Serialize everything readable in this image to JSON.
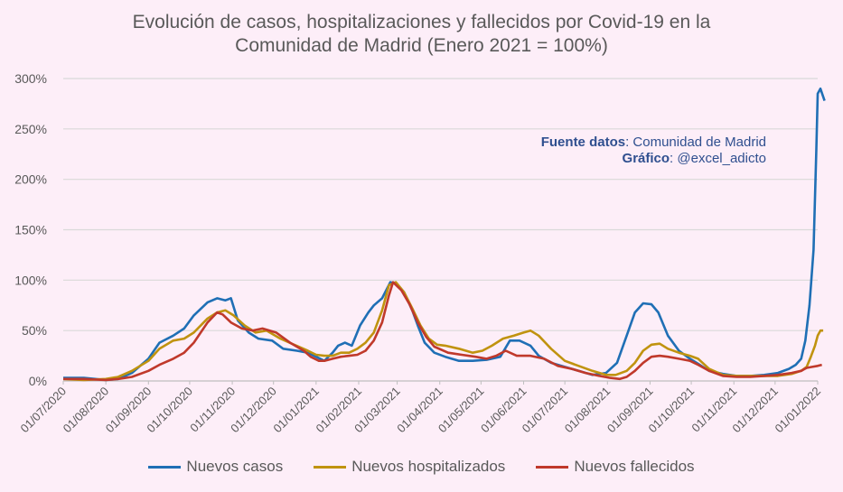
{
  "chart_data": {
    "type": "line",
    "title_lines": [
      "Evolución de casos, hospitalizaciones y fallecidos por Covid-19 en la",
      "Comunidad de Madrid (Enero 2021 = 100%)"
    ],
    "source": {
      "data_label": "Fuente datos",
      "data_value": ": Comunidad de Madrid",
      "chart_label": "Gráfico",
      "chart_value": ": @excel_adicto"
    },
    "y_ticks": [
      "0%",
      "50%",
      "100%",
      "150%",
      "200%",
      "250%",
      "300%"
    ],
    "ylim": [
      0,
      300
    ],
    "x_ticks": [
      "01/07/2020",
      "01/08/2020",
      "01/09/2020",
      "01/10/2020",
      "01/11/2020",
      "01/12/2020",
      "01/01/2021",
      "01/02/2021",
      "01/03/2021",
      "01/04/2021",
      "01/05/2021",
      "01/06/2021",
      "01/07/2021",
      "01/08/2021",
      "01/09/2021",
      "01/10/2021",
      "01/11/2021",
      "01/12/2021",
      "01/01/2022"
    ],
    "x_unit": "days since 01/07/2020",
    "xlim": [
      0,
      549
    ],
    "series": [
      {
        "name": "Nuevos casos",
        "color": "#1f6fb5",
        "points": [
          [
            0,
            3
          ],
          [
            15,
            3
          ],
          [
            31,
            1
          ],
          [
            40,
            2
          ],
          [
            50,
            8
          ],
          [
            62,
            22
          ],
          [
            70,
            38
          ],
          [
            80,
            45
          ],
          [
            88,
            52
          ],
          [
            95,
            65
          ],
          [
            105,
            78
          ],
          [
            112,
            82
          ],
          [
            118,
            80
          ],
          [
            122,
            82
          ],
          [
            127,
            60
          ],
          [
            135,
            48
          ],
          [
            142,
            42
          ],
          [
            152,
            40
          ],
          [
            160,
            32
          ],
          [
            170,
            30
          ],
          [
            178,
            28
          ],
          [
            184,
            24
          ],
          [
            190,
            20
          ],
          [
            196,
            28
          ],
          [
            200,
            35
          ],
          [
            205,
            38
          ],
          [
            210,
            35
          ],
          [
            216,
            55
          ],
          [
            222,
            68
          ],
          [
            226,
            75
          ],
          [
            232,
            82
          ],
          [
            238,
            98
          ],
          [
            243,
            96
          ],
          [
            248,
            88
          ],
          [
            254,
            70
          ],
          [
            258,
            55
          ],
          [
            263,
            38
          ],
          [
            270,
            28
          ],
          [
            278,
            24
          ],
          [
            288,
            20
          ],
          [
            298,
            20
          ],
          [
            308,
            21
          ],
          [
            318,
            24
          ],
          [
            325,
            40
          ],
          [
            332,
            40
          ],
          [
            340,
            35
          ],
          [
            346,
            25
          ],
          [
            355,
            18
          ],
          [
            365,
            14
          ],
          [
            375,
            10
          ],
          [
            385,
            6
          ],
          [
            395,
            8
          ],
          [
            403,
            18
          ],
          [
            410,
            45
          ],
          [
            416,
            68
          ],
          [
            422,
            77
          ],
          [
            428,
            76
          ],
          [
            433,
            68
          ],
          [
            440,
            45
          ],
          [
            448,
            30
          ],
          [
            456,
            22
          ],
          [
            462,
            17
          ],
          [
            470,
            10
          ],
          [
            480,
            7
          ],
          [
            490,
            5
          ],
          [
            500,
            5
          ],
          [
            510,
            6
          ],
          [
            520,
            8
          ],
          [
            528,
            12
          ],
          [
            533,
            16
          ],
          [
            537,
            22
          ],
          [
            540,
            40
          ],
          [
            543,
            75
          ],
          [
            546,
            130
          ],
          [
            548,
            230
          ],
          [
            549,
            285
          ],
          [
            551,
            290
          ],
          [
            554,
            278
          ]
        ]
      },
      {
        "name": "Nuevos hospitalizados",
        "color": "#c0930f",
        "points": [
          [
            0,
            2
          ],
          [
            15,
            1
          ],
          [
            31,
            2
          ],
          [
            40,
            4
          ],
          [
            50,
            10
          ],
          [
            62,
            20
          ],
          [
            70,
            32
          ],
          [
            80,
            40
          ],
          [
            88,
            42
          ],
          [
            95,
            48
          ],
          [
            105,
            62
          ],
          [
            112,
            68
          ],
          [
            118,
            70
          ],
          [
            124,
            65
          ],
          [
            132,
            55
          ],
          [
            140,
            48
          ],
          [
            148,
            50
          ],
          [
            158,
            42
          ],
          [
            168,
            36
          ],
          [
            178,
            30
          ],
          [
            184,
            26
          ],
          [
            190,
            25
          ],
          [
            196,
            25
          ],
          [
            202,
            28
          ],
          [
            208,
            28
          ],
          [
            214,
            32
          ],
          [
            220,
            38
          ],
          [
            226,
            48
          ],
          [
            232,
            70
          ],
          [
            237,
            95
          ],
          [
            242,
            98
          ],
          [
            248,
            88
          ],
          [
            254,
            72
          ],
          [
            260,
            55
          ],
          [
            266,
            42
          ],
          [
            272,
            36
          ],
          [
            278,
            35
          ],
          [
            288,
            32
          ],
          [
            298,
            28
          ],
          [
            305,
            30
          ],
          [
            312,
            35
          ],
          [
            320,
            42
          ],
          [
            328,
            45
          ],
          [
            335,
            48
          ],
          [
            340,
            50
          ],
          [
            346,
            45
          ],
          [
            355,
            32
          ],
          [
            365,
            20
          ],
          [
            375,
            15
          ],
          [
            385,
            10
          ],
          [
            395,
            6
          ],
          [
            402,
            6
          ],
          [
            410,
            10
          ],
          [
            416,
            18
          ],
          [
            422,
            30
          ],
          [
            428,
            36
          ],
          [
            434,
            37
          ],
          [
            440,
            32
          ],
          [
            448,
            28
          ],
          [
            456,
            25
          ],
          [
            462,
            22
          ],
          [
            470,
            12
          ],
          [
            480,
            6
          ],
          [
            490,
            5
          ],
          [
            500,
            5
          ],
          [
            510,
            5
          ],
          [
            520,
            5
          ],
          [
            530,
            7
          ],
          [
            537,
            10
          ],
          [
            541,
            14
          ],
          [
            544,
            24
          ],
          [
            547,
            35
          ],
          [
            549,
            45
          ],
          [
            551,
            50
          ],
          [
            553,
            50
          ]
        ]
      },
      {
        "name": "Nuevos fallecidos",
        "color": "#c0392b",
        "points": [
          [
            0,
            2
          ],
          [
            15,
            2
          ],
          [
            31,
            1
          ],
          [
            40,
            2
          ],
          [
            50,
            4
          ],
          [
            62,
            10
          ],
          [
            70,
            16
          ],
          [
            80,
            22
          ],
          [
            88,
            28
          ],
          [
            95,
            38
          ],
          [
            105,
            58
          ],
          [
            112,
            68
          ],
          [
            116,
            66
          ],
          [
            122,
            58
          ],
          [
            130,
            52
          ],
          [
            138,
            50
          ],
          [
            145,
            52
          ],
          [
            155,
            48
          ],
          [
            165,
            38
          ],
          [
            175,
            30
          ],
          [
            180,
            24
          ],
          [
            186,
            20
          ],
          [
            190,
            20
          ],
          [
            196,
            22
          ],
          [
            202,
            24
          ],
          [
            208,
            25
          ],
          [
            214,
            26
          ],
          [
            220,
            30
          ],
          [
            226,
            40
          ],
          [
            232,
            58
          ],
          [
            237,
            85
          ],
          [
            240,
            98
          ],
          [
            246,
            90
          ],
          [
            252,
            76
          ],
          [
            258,
            58
          ],
          [
            264,
            44
          ],
          [
            270,
            34
          ],
          [
            280,
            28
          ],
          [
            290,
            26
          ],
          [
            300,
            24
          ],
          [
            308,
            22
          ],
          [
            315,
            25
          ],
          [
            322,
            30
          ],
          [
            330,
            25
          ],
          [
            340,
            25
          ],
          [
            350,
            22
          ],
          [
            360,
            15
          ],
          [
            370,
            12
          ],
          [
            380,
            8
          ],
          [
            390,
            5
          ],
          [
            398,
            3
          ],
          [
            405,
            2
          ],
          [
            410,
            4
          ],
          [
            416,
            10
          ],
          [
            422,
            18
          ],
          [
            428,
            24
          ],
          [
            434,
            25
          ],
          [
            440,
            24
          ],
          [
            448,
            22
          ],
          [
            456,
            20
          ],
          [
            462,
            16
          ],
          [
            470,
            10
          ],
          [
            480,
            5
          ],
          [
            490,
            4
          ],
          [
            500,
            4
          ],
          [
            510,
            5
          ],
          [
            520,
            6
          ],
          [
            530,
            8
          ],
          [
            537,
            10
          ],
          [
            541,
            13
          ],
          [
            545,
            14
          ],
          [
            549,
            15
          ],
          [
            552,
            16
          ]
        ]
      }
    ],
    "legend": [
      "Nuevos casos",
      "Nuevos hospitalizados",
      "Nuevos fallecidos"
    ],
    "grid": true,
    "legend_position": "bottom"
  }
}
